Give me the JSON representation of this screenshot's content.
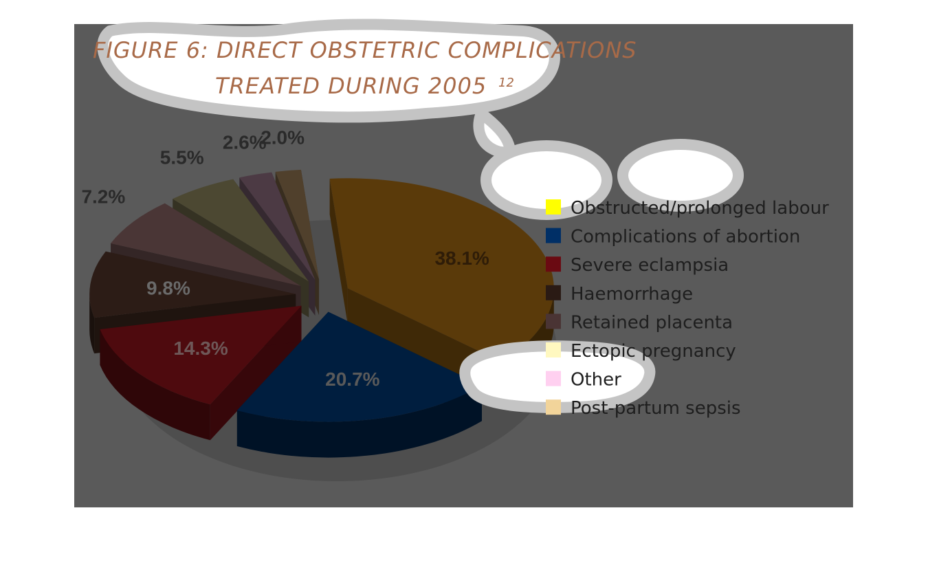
{
  "title_line1": "FIGURE 6: DIRECT OBSTETRIC COMPLICATIONS",
  "title_line2": "TREATED DURING 2005",
  "title_superscript": "12",
  "colors": {
    "panel": "#5a5a5a",
    "bubble_outline": "#c4c4c4",
    "bubble_fill": "#ffffff"
  },
  "chart_data": {
    "type": "pie",
    "title": "FIGURE 6: DIRECT OBSTETRIC COMPLICATIONS TREATED DURING 2005",
    "units": "%",
    "legend_position": "right",
    "slices": [
      {
        "label": "Obstructed/prolonged labour",
        "value": 38.1,
        "value_label": "38.1%",
        "color": "#5a3a0a",
        "swatch": "#ffff00",
        "text_color": "#2e1c08"
      },
      {
        "label": "Complications of abortion",
        "value": 20.7,
        "value_label": "20.7%",
        "color": "#001e3f",
        "swatch": "#002f66",
        "text_color": "#5a5a5a"
      },
      {
        "label": "Severe eclampsia",
        "value": 14.3,
        "value_label": "14.3%",
        "color": "#4e0a0e",
        "swatch": "#6a0a12",
        "text_color": "#6e5858"
      },
      {
        "label": "Haemorrhage",
        "value": 9.8,
        "value_label": "9.8%",
        "color": "#2c1c16",
        "swatch": "#2a1a14",
        "text_color": "#6a6a6a"
      },
      {
        "label": "Retained placenta",
        "value": 7.2,
        "value_label": "7.2%",
        "color": "#4a3636",
        "swatch": "#4a3434",
        "text_color": "#2a2a2a"
      },
      {
        "label": "Ectopic pregnancy",
        "value": 5.5,
        "value_label": "5.5%",
        "color": "#4c4832",
        "swatch": "#fff8c0",
        "text_color": "#2a2a2a"
      },
      {
        "label": "Other",
        "value": 2.6,
        "value_label": "2.6%",
        "color": "#4c3a44",
        "swatch": "#ffd0f0",
        "text_color": "#2a2a2a"
      },
      {
        "label": "Post-partum sepsis",
        "value": 2.0,
        "value_label": "2.0%",
        "color": "#50402c",
        "swatch": "#f2d49a",
        "text_color": "#2a2a2a"
      }
    ]
  }
}
